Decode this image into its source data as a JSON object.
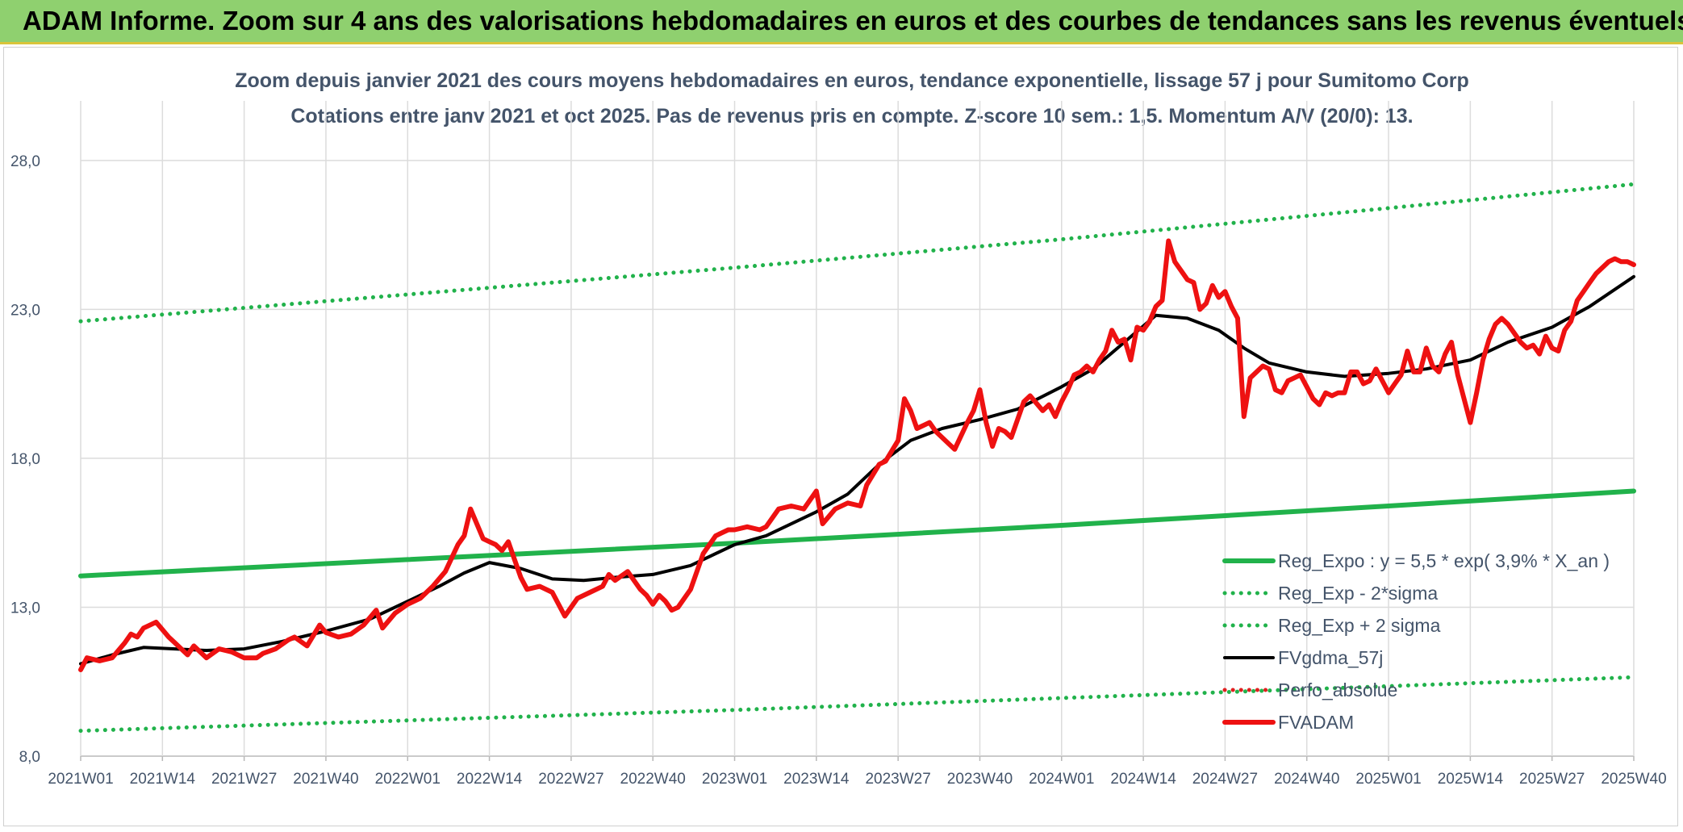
{
  "header": {
    "title": "ADAM Informe. Zoom sur 4 ans des valorisations hebdomadaires en euros et des courbes de tendances sans les revenus éventuels"
  },
  "colors": {
    "banner": "#8fd06f",
    "trend_green": "#21b24b",
    "price_red": "#ee1111",
    "ma_black": "#000000",
    "perfo_red": "#e02020",
    "text_dark": "#44546a"
  },
  "chart_data": {
    "type": "line",
    "title": "Zoom depuis janvier 2021 des cours moyens hebdomadaires en euros, tendance exponentielle, lissage 57 j pour Sumitomo Corp",
    "subtitle": "Cotations entre janv 2021 et oct 2025. Pas de revenus pris en compte. Z-score 10 sem.: 1,5. Momentum A/V (20/0): 13.",
    "xlabel": "",
    "ylabel": "",
    "ylim": [
      8,
      30
    ],
    "yticks": [
      "8,0",
      "13,0",
      "18,0",
      "23,0",
      "28,0"
    ],
    "x_range": [
      "2021W01",
      "2025W40"
    ],
    "categories": [
      "2021W01",
      "2021W14",
      "2021W27",
      "2021W40",
      "2022W01",
      "2022W14",
      "2022W27",
      "2022W40",
      "2023W01",
      "2023W14",
      "2023W27",
      "2023W40",
      "2024W01",
      "2024W14",
      "2024W27",
      "2024W40",
      "2025W01",
      "2025W14",
      "2025W27",
      "2025W40"
    ],
    "grid": true,
    "legend_position": "bottom-right",
    "series": [
      {
        "name": "Reg_Expo : y = 5,5 * exp( 3,9% *  X_an )",
        "style": "solid-thick",
        "color": "#21b24b",
        "points": [
          [
            "2021W01",
            14.05
          ],
          [
            "2022W01",
            14.6
          ],
          [
            "2023W01",
            15.15
          ],
          [
            "2024W01",
            15.75
          ],
          [
            "2025W01",
            16.4
          ],
          [
            "2025W40",
            16.9
          ]
        ]
      },
      {
        "name": "Reg_Exp - 2*sigma",
        "style": "dotted",
        "color": "#21b24b",
        "points": [
          [
            "2021W01",
            8.85
          ],
          [
            "2022W01",
            9.2
          ],
          [
            "2023W01",
            9.55
          ],
          [
            "2024W01",
            9.95
          ],
          [
            "2025W01",
            10.35
          ],
          [
            "2025W40",
            10.65
          ]
        ]
      },
      {
        "name": "Reg_Exp + 2 sigma",
        "style": "dotted",
        "color": "#21b24b",
        "points": [
          [
            "2021W01",
            22.6
          ],
          [
            "2022W01",
            23.5
          ],
          [
            "2023W01",
            24.4
          ],
          [
            "2024W01",
            25.35
          ],
          [
            "2025W01",
            26.4
          ],
          [
            "2025W40",
            27.2
          ]
        ]
      },
      {
        "name": "FVgdma_57j",
        "style": "solid",
        "color": "#000000",
        "points": [
          [
            "2021W01",
            11.1
          ],
          [
            "2021W06",
            11.4
          ],
          [
            "2021W11",
            11.65
          ],
          [
            "2021W16",
            11.6
          ],
          [
            "2021W21",
            11.55
          ],
          [
            "2021W27",
            11.6
          ],
          [
            "2021W33",
            11.85
          ],
          [
            "2021W40",
            12.2
          ],
          [
            "2021W47",
            12.6
          ],
          [
            "2022W01",
            13.2
          ],
          [
            "2022W06",
            13.7
          ],
          [
            "2022W10",
            14.15
          ],
          [
            "2022W14",
            14.5
          ],
          [
            "2022W19",
            14.3
          ],
          [
            "2022W24",
            13.95
          ],
          [
            "2022W29",
            13.9
          ],
          [
            "2022W34",
            14.0
          ],
          [
            "2022W40",
            14.1
          ],
          [
            "2022W46",
            14.4
          ],
          [
            "2023W01",
            15.1
          ],
          [
            "2023W06",
            15.4
          ],
          [
            "2023W14",
            16.2
          ],
          [
            "2023W19",
            16.8
          ],
          [
            "2023W24",
            17.8
          ],
          [
            "2023W29",
            18.6
          ],
          [
            "2023W34",
            19.0
          ],
          [
            "2023W40",
            19.3
          ],
          [
            "2023W46",
            19.65
          ],
          [
            "2024W01",
            20.4
          ],
          [
            "2024W06",
            21.0
          ],
          [
            "2024W11",
            21.9
          ],
          [
            "2024W16",
            22.8
          ],
          [
            "2024W21",
            22.7
          ],
          [
            "2024W26",
            22.3
          ],
          [
            "2024W30",
            21.7
          ],
          [
            "2024W34",
            21.2
          ],
          [
            "2024W40",
            20.9
          ],
          [
            "2024W46",
            20.75
          ],
          [
            "2025W01",
            20.85
          ],
          [
            "2025W07",
            21.0
          ],
          [
            "2025W14",
            21.3
          ],
          [
            "2025W20",
            21.9
          ],
          [
            "2025W27",
            22.4
          ],
          [
            "2025W33",
            23.1
          ],
          [
            "2025W40",
            24.1
          ]
        ]
      },
      {
        "name": "Perfo_absolue",
        "style": "dotted",
        "color": "#e02020",
        "points": []
      },
      {
        "name": "FVADAM",
        "style": "solid-thick",
        "color": "#ee1111",
        "points": [
          [
            "2021W01",
            10.9
          ],
          [
            "2021W02",
            11.3
          ],
          [
            "2021W04",
            11.2
          ],
          [
            "2021W06",
            11.3
          ],
          [
            "2021W08",
            11.8
          ],
          [
            "2021W09",
            12.1
          ],
          [
            "2021W10",
            12.0
          ],
          [
            "2021W11",
            12.3
          ],
          [
            "2021W13",
            12.5
          ],
          [
            "2021W15",
            12.0
          ],
          [
            "2021W16",
            11.8
          ],
          [
            "2021W18",
            11.4
          ],
          [
            "2021W19",
            11.7
          ],
          [
            "2021W21",
            11.3
          ],
          [
            "2021W23",
            11.6
          ],
          [
            "2021W25",
            11.5
          ],
          [
            "2021W27",
            11.3
          ],
          [
            "2021W29",
            11.3
          ],
          [
            "2021W30",
            11.45
          ],
          [
            "2021W32",
            11.6
          ],
          [
            "2021W34",
            11.9
          ],
          [
            "2021W35",
            12.0
          ],
          [
            "2021W37",
            11.7
          ],
          [
            "2021W39",
            12.4
          ],
          [
            "2021W40",
            12.15
          ],
          [
            "2021W42",
            12.0
          ],
          [
            "2021W44",
            12.1
          ],
          [
            "2021W46",
            12.4
          ],
          [
            "2021W48",
            12.9
          ],
          [
            "2021W49",
            12.3
          ],
          [
            "2021W51",
            12.8
          ],
          [
            "2022W01",
            13.1
          ],
          [
            "2022W03",
            13.3
          ],
          [
            "2022W05",
            13.7
          ],
          [
            "2022W07",
            14.2
          ],
          [
            "2022W09",
            15.1
          ],
          [
            "2022W10",
            15.4
          ],
          [
            "2022W11",
            16.3
          ],
          [
            "2022W13",
            15.3
          ],
          [
            "2022W14",
            15.2
          ],
          [
            "2022W15",
            15.1
          ],
          [
            "2022W16",
            14.9
          ],
          [
            "2022W17",
            15.2
          ],
          [
            "2022W19",
            14.0
          ],
          [
            "2022W20",
            13.6
          ],
          [
            "2022W22",
            13.7
          ],
          [
            "2022W24",
            13.5
          ],
          [
            "2022W26",
            12.7
          ],
          [
            "2022W28",
            13.3
          ],
          [
            "2022W30",
            13.5
          ],
          [
            "2022W32",
            13.7
          ],
          [
            "2022W33",
            14.1
          ],
          [
            "2022W34",
            13.9
          ],
          [
            "2022W36",
            14.2
          ],
          [
            "2022W38",
            13.6
          ],
          [
            "2022W39",
            13.4
          ],
          [
            "2022W40",
            13.1
          ],
          [
            "2022W41",
            13.4
          ],
          [
            "2022W42",
            13.2
          ],
          [
            "2022W43",
            12.9
          ],
          [
            "2022W44",
            13.0
          ],
          [
            "2022W46",
            13.6
          ],
          [
            "2022W48",
            14.8
          ],
          [
            "2022W50",
            15.4
          ],
          [
            "2022W51",
            15.5
          ],
          [
            "2022W52",
            15.6
          ],
          [
            "2023W01",
            15.6
          ],
          [
            "2023W03",
            15.7
          ],
          [
            "2023W05",
            15.6
          ],
          [
            "2023W06",
            15.7
          ],
          [
            "2023W08",
            16.3
          ],
          [
            "2023W10",
            16.4
          ],
          [
            "2023W12",
            16.3
          ],
          [
            "2023W14",
            16.9
          ],
          [
            "2023W15",
            15.8
          ],
          [
            "2023W17",
            16.3
          ],
          [
            "2023W19",
            16.5
          ],
          [
            "2023W21",
            16.4
          ],
          [
            "2023W22",
            17.1
          ],
          [
            "2023W24",
            17.8
          ],
          [
            "2023W25",
            17.9
          ],
          [
            "2023W27",
            18.6
          ],
          [
            "2023W28",
            20.0
          ],
          [
            "2023W29",
            19.6
          ],
          [
            "2023W30",
            19.0
          ],
          [
            "2023W32",
            19.2
          ],
          [
            "2023W33",
            18.9
          ],
          [
            "2023W35",
            18.5
          ],
          [
            "2023W36",
            18.3
          ],
          [
            "2023W38",
            19.2
          ],
          [
            "2023W39",
            19.6
          ],
          [
            "2023W40",
            20.3
          ],
          [
            "2023W41",
            19.2
          ],
          [
            "2023W42",
            18.4
          ],
          [
            "2023W43",
            19.0
          ],
          [
            "2023W44",
            18.9
          ],
          [
            "2023W45",
            18.7
          ],
          [
            "2023W47",
            19.9
          ],
          [
            "2023W48",
            20.1
          ],
          [
            "2023W50",
            19.6
          ],
          [
            "2023W51",
            19.8
          ],
          [
            "2023W52",
            19.4
          ],
          [
            "2024W01",
            19.9
          ],
          [
            "2024W02",
            20.3
          ],
          [
            "2024W03",
            20.8
          ],
          [
            "2024W04",
            20.9
          ],
          [
            "2024W05",
            21.1
          ],
          [
            "2024W06",
            20.9
          ],
          [
            "2024W07",
            21.3
          ],
          [
            "2024W08",
            21.6
          ],
          [
            "2024W09",
            22.3
          ],
          [
            "2024W10",
            21.9
          ],
          [
            "2024W11",
            22.0
          ],
          [
            "2024W12",
            21.3
          ],
          [
            "2024W13",
            22.4
          ],
          [
            "2024W14",
            22.3
          ],
          [
            "2024W15",
            22.6
          ],
          [
            "2024W16",
            23.1
          ],
          [
            "2024W17",
            23.3
          ],
          [
            "2024W18",
            25.3
          ],
          [
            "2024W19",
            24.6
          ],
          [
            "2024W20",
            24.3
          ],
          [
            "2024W21",
            24.0
          ],
          [
            "2024W22",
            23.9
          ],
          [
            "2024W23",
            23.0
          ],
          [
            "2024W24",
            23.2
          ],
          [
            "2024W25",
            23.8
          ],
          [
            "2024W26",
            23.4
          ],
          [
            "2024W27",
            23.6
          ],
          [
            "2024W28",
            23.1
          ],
          [
            "2024W29",
            22.7
          ],
          [
            "2024W30",
            19.4
          ],
          [
            "2024W31",
            20.7
          ],
          [
            "2024W32",
            20.9
          ],
          [
            "2024W33",
            21.1
          ],
          [
            "2024W34",
            21.0
          ],
          [
            "2024W35",
            20.3
          ],
          [
            "2024W36",
            20.2
          ],
          [
            "2024W37",
            20.6
          ],
          [
            "2024W38",
            20.7
          ],
          [
            "2024W39",
            20.8
          ],
          [
            "2024W40",
            20.4
          ],
          [
            "2024W41",
            20.0
          ],
          [
            "2024W42",
            19.8
          ],
          [
            "2024W43",
            20.2
          ],
          [
            "2024W44",
            20.1
          ],
          [
            "2024W45",
            20.2
          ],
          [
            "2024W46",
            20.2
          ],
          [
            "2024W47",
            20.9
          ],
          [
            "2024W48",
            20.9
          ],
          [
            "2024W49",
            20.5
          ],
          [
            "2024W50",
            20.6
          ],
          [
            "2024W51",
            21.0
          ],
          [
            "2024W52",
            20.6
          ],
          [
            "2025W01",
            20.2
          ],
          [
            "2025W02",
            20.5
          ],
          [
            "2025W03",
            20.8
          ],
          [
            "2025W04",
            21.6
          ],
          [
            "2025W05",
            20.9
          ],
          [
            "2025W06",
            20.9
          ],
          [
            "2025W07",
            21.7
          ],
          [
            "2025W08",
            21.1
          ],
          [
            "2025W09",
            20.9
          ],
          [
            "2025W10",
            21.5
          ],
          [
            "2025W11",
            21.9
          ],
          [
            "2025W12",
            20.8
          ],
          [
            "2025W13",
            20.0
          ],
          [
            "2025W14",
            19.2
          ],
          [
            "2025W15",
            20.2
          ],
          [
            "2025W16",
            21.3
          ],
          [
            "2025W17",
            22.0
          ],
          [
            "2025W18",
            22.5
          ],
          [
            "2025W19",
            22.7
          ],
          [
            "2025W20",
            22.5
          ],
          [
            "2025W21",
            22.2
          ],
          [
            "2025W22",
            21.9
          ],
          [
            "2025W23",
            21.7
          ],
          [
            "2025W24",
            21.8
          ],
          [
            "2025W25",
            21.5
          ],
          [
            "2025W26",
            22.1
          ],
          [
            "2025W27",
            21.7
          ],
          [
            "2025W28",
            21.6
          ],
          [
            "2025W29",
            22.3
          ],
          [
            "2025W30",
            22.6
          ],
          [
            "2025W31",
            23.3
          ],
          [
            "2025W32",
            23.6
          ],
          [
            "2025W33",
            23.9
          ],
          [
            "2025W34",
            24.2
          ],
          [
            "2025W35",
            24.4
          ],
          [
            "2025W36",
            24.6
          ],
          [
            "2025W37",
            24.7
          ],
          [
            "2025W38",
            24.6
          ],
          [
            "2025W39",
            24.6
          ],
          [
            "2025W40",
            24.5
          ]
        ]
      }
    ]
  }
}
